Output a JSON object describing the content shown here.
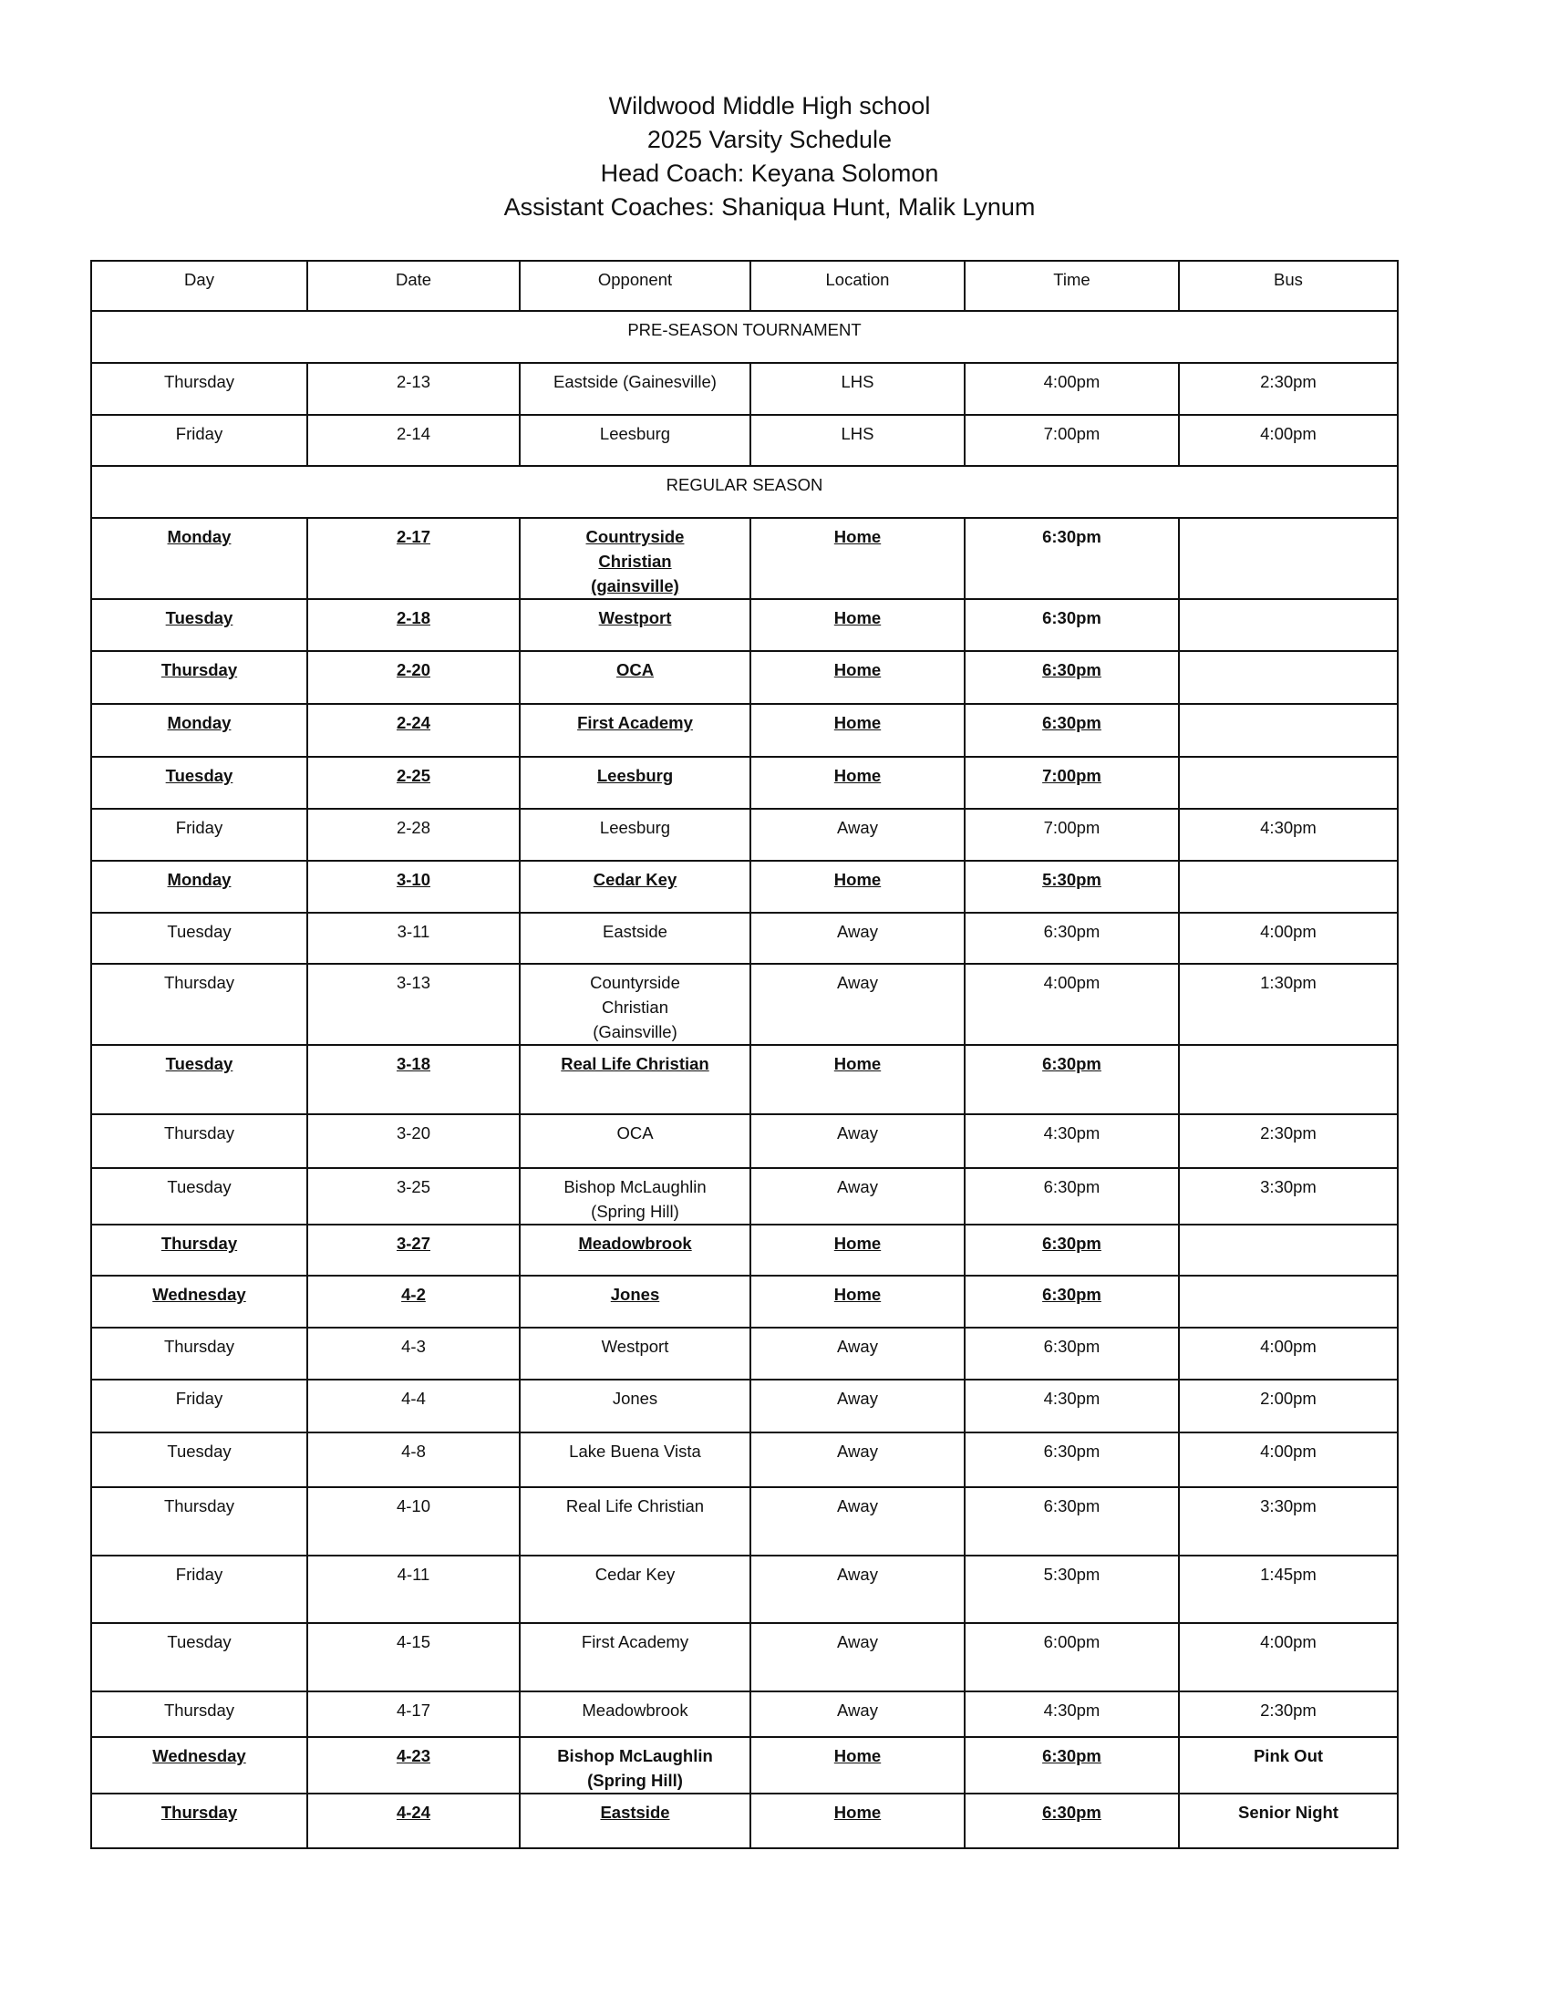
{
  "header": {
    "school": "Wildwood Middle High school",
    "schedule": "2025 Varsity Schedule",
    "head_coach": "Head Coach: Keyana Solomon",
    "assistant_coaches": "Assistant Coaches: Shaniqua Hunt, Malik Lynum"
  },
  "columns": [
    "Day",
    "Date",
    "Opponent",
    "Location",
    "Time",
    "Bus"
  ],
  "sections": {
    "pre": "PRE-SEASON TOURNAMENT",
    "regular": "REGULAR SEASON"
  },
  "pre_season": [
    {
      "day": "Thursday",
      "date": "2-13",
      "opponent": "Eastside (Gainesville)",
      "location": "LHS",
      "time": "4:00pm",
      "bus": "2:30pm"
    },
    {
      "day": "Friday",
      "date": "2-14",
      "opponent": "Leesburg",
      "location": "LHS",
      "time": "7:00pm",
      "bus": "4:00pm"
    }
  ],
  "regular_season": [
    {
      "day": "Monday",
      "date": "2-17",
      "opponent": "Countryside\nChristian\n(gainsville)",
      "location": "Home",
      "time": "6:30pm",
      "bus": "",
      "bold": true,
      "underline": [
        "day",
        "date",
        "opponent",
        "location"
      ]
    },
    {
      "day": "Tuesday",
      "date": "2-18",
      "opponent": "Westport",
      "location": "Home",
      "time": "6:30pm",
      "bus": "",
      "bold": true,
      "underline": [
        "day",
        "date",
        "opponent",
        "location"
      ]
    },
    {
      "day": "Thursday",
      "date": "2-20",
      "opponent": "OCA",
      "location": "Home",
      "time": "6:30pm",
      "bus": "",
      "bold": true,
      "underline": [
        "day",
        "date",
        "opponent",
        "location",
        "time"
      ]
    },
    {
      "day": "Monday",
      "date": "2-24",
      "opponent": "First Academy",
      "location": "Home",
      "time": "6:30pm",
      "bus": "",
      "bold": true,
      "underline": [
        "day",
        "date",
        "opponent",
        "location",
        "time"
      ]
    },
    {
      "day": "Tuesday",
      "date": "2-25",
      "opponent": "Leesburg",
      "location": "Home",
      "time": "7:00pm",
      "bus": "",
      "bold": true,
      "underline": [
        "day",
        "date",
        "opponent",
        "location",
        "time"
      ]
    },
    {
      "day": "Friday",
      "date": "2-28",
      "opponent": "Leesburg",
      "location": "Away",
      "time": "7:00pm",
      "bus": "4:30pm"
    },
    {
      "day": "Monday",
      "date": "3-10",
      "opponent": "Cedar Key",
      "location": "Home",
      "time": "5:30pm",
      "bus": "",
      "bold": true,
      "underline": [
        "day",
        "date",
        "opponent",
        "location",
        "time"
      ]
    },
    {
      "day": "Tuesday",
      "date": "3-11",
      "opponent": "Eastside",
      "location": "Away",
      "time": "6:30pm",
      "bus": "4:00pm"
    },
    {
      "day": "Thursday",
      "date": "3-13",
      "opponent": "Countyrside\nChristian\n(Gainsville)",
      "location": "Away",
      "time": "4:00pm",
      "bus": "1:30pm"
    },
    {
      "day": "Tuesday",
      "date": "3-18",
      "opponent": "Real Life Christian",
      "location": "Home",
      "time": "6:30pm",
      "bus": "",
      "bold": true,
      "underline": [
        "day",
        "date",
        "opponent",
        "location",
        "time"
      ]
    },
    {
      "day": "Thursday",
      "date": "3-20",
      "opponent": "OCA",
      "location": "Away",
      "time": "4:30pm",
      "bus": "2:30pm"
    },
    {
      "day": "Tuesday",
      "date": "3-25",
      "opponent": "Bishop McLaughlin\n(Spring Hill)",
      "location": "Away",
      "time": "6:30pm",
      "bus": "3:30pm"
    },
    {
      "day": "Thursday",
      "date": "3-27",
      "opponent": "Meadowbrook",
      "location": "Home",
      "time": "6:30pm",
      "bus": "",
      "bold": true,
      "underline": [
        "day",
        "date",
        "opponent",
        "location",
        "time"
      ]
    },
    {
      "day": "Wednesday",
      "date": "4-2",
      "opponent": "Jones",
      "location": "Home",
      "time": "6:30pm",
      "bus": "",
      "bold": true,
      "underline": [
        "day",
        "date",
        "opponent",
        "location",
        "time"
      ]
    },
    {
      "day": "Thursday",
      "date": "4-3",
      "opponent": "Westport",
      "location": "Away",
      "time": "6:30pm",
      "bus": "4:00pm"
    },
    {
      "day": "Friday",
      "date": "4-4",
      "opponent": "Jones",
      "location": "Away",
      "time": "4:30pm",
      "bus": "2:00pm"
    },
    {
      "day": "Tuesday",
      "date": "4-8",
      "opponent": "Lake Buena Vista",
      "location": "Away",
      "time": "6:30pm",
      "bus": "4:00pm"
    },
    {
      "day": "Thursday",
      "date": "4-10",
      "opponent": "Real Life Christian",
      "location": "Away",
      "time": "6:30pm",
      "bus": "3:30pm"
    },
    {
      "day": "Friday",
      "date": "4-11",
      "opponent": "Cedar Key",
      "location": "Away",
      "time": "5:30pm",
      "bus": "1:45pm"
    },
    {
      "day": "Tuesday",
      "date": "4-15",
      "opponent": "First Academy",
      "location": "Away",
      "time": "6:00pm",
      "bus": "4:00pm"
    },
    {
      "day": "Thursday",
      "date": "4-17",
      "opponent": "Meadowbrook",
      "location": "Away",
      "time": "4:30pm",
      "bus": "2:30pm"
    },
    {
      "day": "Wednesday",
      "date": "4-23",
      "opponent": "Bishop McLaughlin\n(Spring Hill)",
      "location": "Home",
      "time": "6:30pm",
      "bus": "Pink Out",
      "bold": true,
      "underline": [
        "day",
        "date",
        "location",
        "time"
      ]
    },
    {
      "day": "Thursday",
      "date": "4-24",
      "opponent": "Eastside",
      "location": "Home",
      "time": "6:30pm",
      "bus": "Senior Night",
      "bold": true,
      "underline": [
        "day",
        "date",
        "opponent",
        "location",
        "time"
      ]
    }
  ]
}
